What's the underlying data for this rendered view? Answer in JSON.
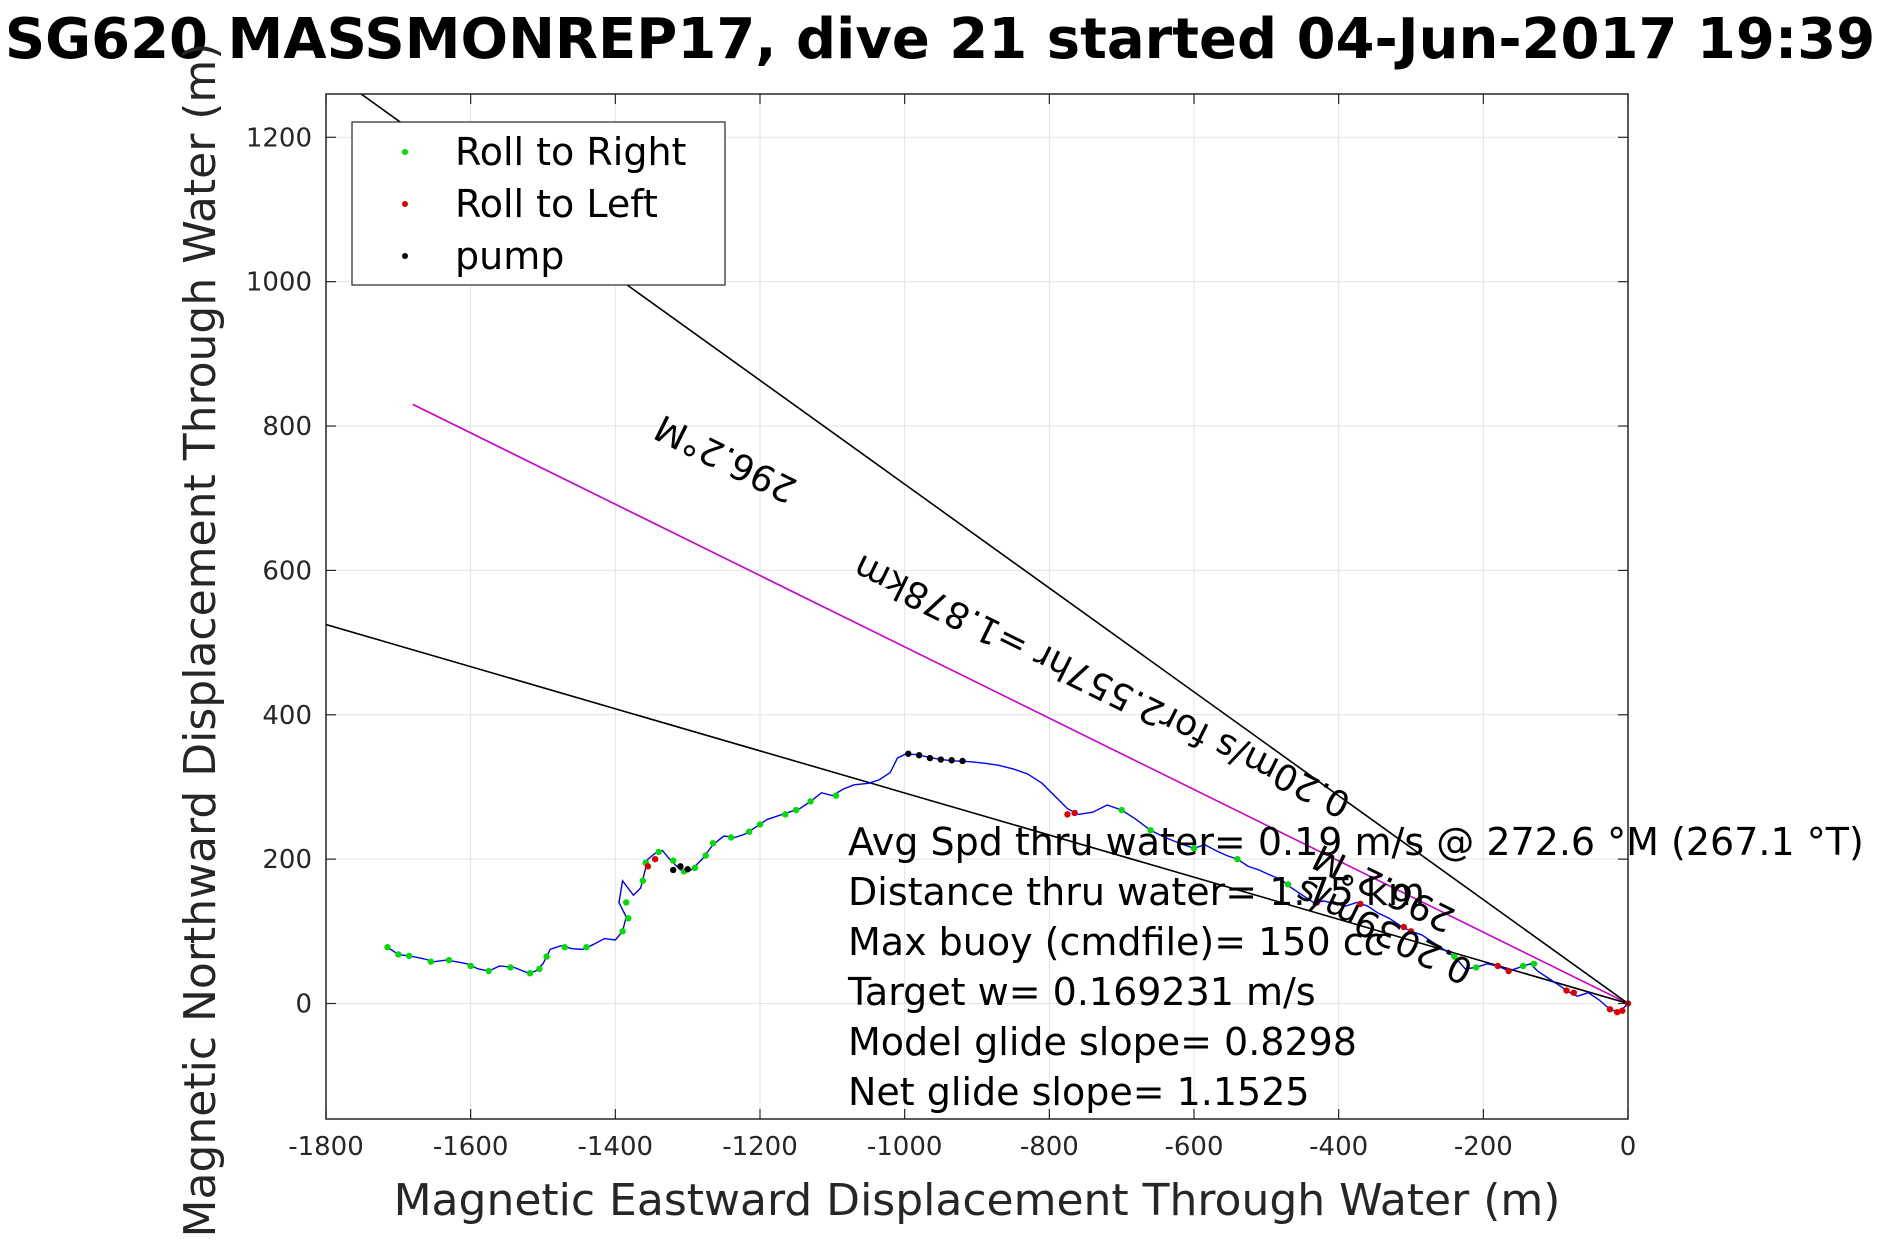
{
  "chart_data": {
    "type": "line",
    "title": "SG620 MASSMONREP17, dive 21 started 04-Jun-2017 19:39",
    "xlabel": "Magnetic Eastward Displacement Through Water (m)",
    "ylabel": "Magnetic Northward Displacement Through Water (m)",
    "xlim": [
      -1800,
      0
    ],
    "ylim": [
      -160,
      1260
    ],
    "xticks": [
      -1800,
      -1600,
      -1400,
      -1200,
      -1000,
      -800,
      -600,
      -400,
      -200,
      0
    ],
    "yticks": [
      0,
      200,
      400,
      600,
      800,
      1000,
      1200
    ],
    "grid": true,
    "legend": {
      "placement": "top-left",
      "entries": [
        {
          "label": "Roll to Right",
          "color": "#00dd00"
        },
        {
          "label": "Roll to Left",
          "color": "#dd0000"
        },
        {
          "label": "pump",
          "color": "#000000"
        }
      ]
    },
    "track": {
      "name": "Track",
      "color": "#0000ff",
      "points": [
        [
          0,
          0
        ],
        [
          -12,
          -12
        ],
        [
          -25,
          -8
        ],
        [
          -40,
          5
        ],
        [
          -55,
          15
        ],
        [
          -70,
          10
        ],
        [
          -80,
          15
        ],
        [
          -95,
          25
        ],
        [
          -110,
          35
        ],
        [
          -125,
          45
        ],
        [
          -135,
          55
        ],
        [
          -150,
          50
        ],
        [
          -165,
          45
        ],
        [
          -180,
          52
        ],
        [
          -195,
          55
        ],
        [
          -210,
          50
        ],
        [
          -225,
          48
        ],
        [
          -240,
          65
        ],
        [
          -255,
          75
        ],
        [
          -270,
          85
        ],
        [
          -285,
          95
        ],
        [
          -300,
          100
        ],
        [
          -315,
          108
        ],
        [
          -330,
          118
        ],
        [
          -345,
          125
        ],
        [
          -360,
          135
        ],
        [
          -375,
          140
        ],
        [
          -390,
          135
        ],
        [
          -405,
          138
        ],
        [
          -420,
          142
        ],
        [
          -435,
          140
        ],
        [
          -450,
          150
        ],
        [
          -465,
          160
        ],
        [
          -480,
          172
        ],
        [
          -495,
          178
        ],
        [
          -510,
          185
        ],
        [
          -525,
          190
        ],
        [
          -540,
          200
        ],
        [
          -555,
          205
        ],
        [
          -570,
          212
        ],
        [
          -585,
          220
        ],
        [
          -600,
          215
        ],
        [
          -620,
          222
        ],
        [
          -640,
          230
        ],
        [
          -660,
          240
        ],
        [
          -680,
          255
        ],
        [
          -700,
          268
        ],
        [
          -720,
          275
        ],
        [
          -740,
          265
        ],
        [
          -760,
          262
        ],
        [
          -775,
          270
        ],
        [
          -790,
          285
        ],
        [
          -810,
          305
        ],
        [
          -830,
          318
        ],
        [
          -850,
          325
        ],
        [
          -870,
          330
        ],
        [
          -890,
          333
        ],
        [
          -910,
          335
        ],
        [
          -930,
          336
        ],
        [
          -950,
          338
        ],
        [
          -970,
          342
        ],
        [
          -985,
          345
        ],
        [
          -1000,
          345
        ],
        [
          -1010,
          340
        ],
        [
          -1020,
          320
        ],
        [
          -1035,
          310
        ],
        [
          -1050,
          305
        ],
        [
          -1070,
          303
        ],
        [
          -1085,
          297
        ],
        [
          -1100,
          288
        ],
        [
          -1115,
          292
        ],
        [
          -1130,
          280
        ],
        [
          -1145,
          270
        ],
        [
          -1160,
          265
        ],
        [
          -1175,
          260
        ],
        [
          -1190,
          255
        ],
        [
          -1205,
          245
        ],
        [
          -1220,
          235
        ],
        [
          -1235,
          230
        ],
        [
          -1250,
          232
        ],
        [
          -1265,
          220
        ],
        [
          -1280,
          200
        ],
        [
          -1295,
          185
        ],
        [
          -1310,
          185
        ],
        [
          -1325,
          200
        ],
        [
          -1335,
          212
        ],
        [
          -1345,
          208
        ],
        [
          -1355,
          200
        ],
        [
          -1360,
          180
        ],
        [
          -1365,
          160
        ],
        [
          -1375,
          150
        ],
        [
          -1390,
          170
        ],
        [
          -1395,
          140
        ],
        [
          -1385,
          120
        ],
        [
          -1390,
          100
        ],
        [
          -1400,
          88
        ],
        [
          -1415,
          90
        ],
        [
          -1430,
          82
        ],
        [
          -1445,
          75
        ],
        [
          -1460,
          76
        ],
        [
          -1475,
          80
        ],
        [
          -1490,
          75
        ],
        [
          -1500,
          55
        ],
        [
          -1510,
          45
        ],
        [
          -1520,
          42
        ],
        [
          -1540,
          50
        ],
        [
          -1560,
          52
        ],
        [
          -1575,
          45
        ],
        [
          -1590,
          48
        ],
        [
          -1605,
          55
        ],
        [
          -1620,
          58
        ],
        [
          -1635,
          60
        ],
        [
          -1650,
          58
        ],
        [
          -1665,
          62
        ],
        [
          -1680,
          65
        ],
        [
          -1700,
          68
        ],
        [
          -1715,
          78
        ]
      ]
    },
    "roll_right": [
      [
        -130,
        55
      ],
      [
        -145,
        52
      ],
      [
        -210,
        50
      ],
      [
        -240,
        65
      ],
      [
        -470,
        165
      ],
      [
        -540,
        200
      ],
      [
        -600,
        215
      ],
      [
        -660,
        240
      ],
      [
        -700,
        268
      ],
      [
        -1095,
        288
      ],
      [
        -1130,
        280
      ],
      [
        -1150,
        268
      ],
      [
        -1165,
        262
      ],
      [
        -1200,
        248
      ],
      [
        -1215,
        238
      ],
      [
        -1240,
        230
      ],
      [
        -1265,
        222
      ],
      [
        -1275,
        205
      ],
      [
        -1290,
        188
      ],
      [
        -1305,
        183
      ],
      [
        -1320,
        198
      ],
      [
        -1340,
        210
      ],
      [
        -1358,
        195
      ],
      [
        -1362,
        170
      ],
      [
        -1385,
        140
      ],
      [
        -1382,
        118
      ],
      [
        -1390,
        100
      ],
      [
        -1440,
        78
      ],
      [
        -1470,
        78
      ],
      [
        -1495,
        65
      ],
      [
        -1505,
        48
      ],
      [
        -1518,
        42
      ],
      [
        -1545,
        50
      ],
      [
        -1575,
        45
      ],
      [
        -1600,
        52
      ],
      [
        -1630,
        60
      ],
      [
        -1655,
        58
      ],
      [
        -1685,
        66
      ],
      [
        -1700,
        68
      ],
      [
        -1715,
        78
      ]
    ],
    "roll_left": [
      [
        0,
        0
      ],
      [
        -8,
        -10
      ],
      [
        -15,
        -12
      ],
      [
        -25,
        -8
      ],
      [
        -75,
        15
      ],
      [
        -85,
        18
      ],
      [
        -165,
        45
      ],
      [
        -180,
        52
      ],
      [
        -300,
        100
      ],
      [
        -310,
        106
      ],
      [
        -370,
        138
      ],
      [
        -430,
        140
      ],
      [
        -775,
        262
      ],
      [
        -765,
        264
      ],
      [
        -1355,
        190
      ],
      [
        -1345,
        200
      ]
    ],
    "pump": [
      [
        -920,
        336
      ],
      [
        -935,
        337
      ],
      [
        -950,
        338
      ],
      [
        -965,
        340
      ],
      [
        -980,
        344
      ],
      [
        -995,
        346
      ],
      [
        -1310,
        190
      ],
      [
        -1300,
        186
      ],
      [
        -1320,
        185
      ]
    ],
    "reference_lines": [
      {
        "label": "296.2°M",
        "color": "#cc00cc",
        "x_end": -1680,
        "y_end": 830
      },
      {
        "label": "",
        "color": "#000000",
        "x_end": -1800,
        "y_end": 1295
      },
      {
        "label": "",
        "color": "#000000",
        "x_end": -1800,
        "y_end": 525
      }
    ],
    "line_labels": [
      {
        "text": "296.2°M",
        "x": -1240,
        "y": 770
      },
      {
        "text": "0.20m/s for2.557hr =1.878km",
        "x": -720,
        "y": 455
      },
      {
        "text": "296.2°M",
        "x": -330,
        "y": 175
      },
      {
        "text": "0.2039m/s",
        "x": -330,
        "y": 115
      }
    ],
    "annotations": [
      "Avg Spd thru water= 0.19 m/s @ 272.6 °M (267.1 °T)",
      "Distance thru water= 1.75 km",
      "Max buoy (cmdfile)= 150 cc",
      "Target w= 0.169231 m/s",
      "Model glide slope= 0.8298",
      "Net glide slope= 1.1525"
    ]
  }
}
